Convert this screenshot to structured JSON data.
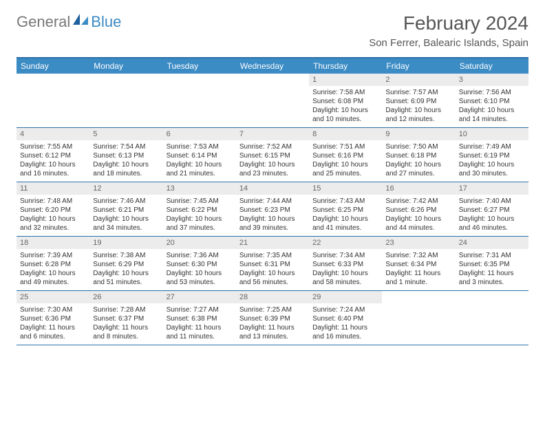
{
  "logo": {
    "text1": "General",
    "text2": "Blue"
  },
  "title": "February 2024",
  "location": "Son Ferrer, Balearic Islands, Spain",
  "weekdays": [
    "Sunday",
    "Monday",
    "Tuesday",
    "Wednesday",
    "Thursday",
    "Friday",
    "Saturday"
  ],
  "colors": {
    "header_bar": "#3b8bc4",
    "header_border": "#2a6fa8",
    "daynum_bg": "#ececec",
    "text": "#333333",
    "title_text": "#555555"
  },
  "fonts": {
    "title_size": 28,
    "location_size": 15,
    "weekday_size": 12,
    "body_size": 10
  },
  "layout": {
    "columns": 7,
    "first_weekday_index": 4,
    "days_in_month": 29
  },
  "days": [
    {
      "n": 1,
      "sunrise": "7:58 AM",
      "sunset": "6:08 PM",
      "daylight": "10 hours and 10 minutes."
    },
    {
      "n": 2,
      "sunrise": "7:57 AM",
      "sunset": "6:09 PM",
      "daylight": "10 hours and 12 minutes."
    },
    {
      "n": 3,
      "sunrise": "7:56 AM",
      "sunset": "6:10 PM",
      "daylight": "10 hours and 14 minutes."
    },
    {
      "n": 4,
      "sunrise": "7:55 AM",
      "sunset": "6:12 PM",
      "daylight": "10 hours and 16 minutes."
    },
    {
      "n": 5,
      "sunrise": "7:54 AM",
      "sunset": "6:13 PM",
      "daylight": "10 hours and 18 minutes."
    },
    {
      "n": 6,
      "sunrise": "7:53 AM",
      "sunset": "6:14 PM",
      "daylight": "10 hours and 21 minutes."
    },
    {
      "n": 7,
      "sunrise": "7:52 AM",
      "sunset": "6:15 PM",
      "daylight": "10 hours and 23 minutes."
    },
    {
      "n": 8,
      "sunrise": "7:51 AM",
      "sunset": "6:16 PM",
      "daylight": "10 hours and 25 minutes."
    },
    {
      "n": 9,
      "sunrise": "7:50 AM",
      "sunset": "6:18 PM",
      "daylight": "10 hours and 27 minutes."
    },
    {
      "n": 10,
      "sunrise": "7:49 AM",
      "sunset": "6:19 PM",
      "daylight": "10 hours and 30 minutes."
    },
    {
      "n": 11,
      "sunrise": "7:48 AM",
      "sunset": "6:20 PM",
      "daylight": "10 hours and 32 minutes."
    },
    {
      "n": 12,
      "sunrise": "7:46 AM",
      "sunset": "6:21 PM",
      "daylight": "10 hours and 34 minutes."
    },
    {
      "n": 13,
      "sunrise": "7:45 AM",
      "sunset": "6:22 PM",
      "daylight": "10 hours and 37 minutes."
    },
    {
      "n": 14,
      "sunrise": "7:44 AM",
      "sunset": "6:23 PM",
      "daylight": "10 hours and 39 minutes."
    },
    {
      "n": 15,
      "sunrise": "7:43 AM",
      "sunset": "6:25 PM",
      "daylight": "10 hours and 41 minutes."
    },
    {
      "n": 16,
      "sunrise": "7:42 AM",
      "sunset": "6:26 PM",
      "daylight": "10 hours and 44 minutes."
    },
    {
      "n": 17,
      "sunrise": "7:40 AM",
      "sunset": "6:27 PM",
      "daylight": "10 hours and 46 minutes."
    },
    {
      "n": 18,
      "sunrise": "7:39 AM",
      "sunset": "6:28 PM",
      "daylight": "10 hours and 49 minutes."
    },
    {
      "n": 19,
      "sunrise": "7:38 AM",
      "sunset": "6:29 PM",
      "daylight": "10 hours and 51 minutes."
    },
    {
      "n": 20,
      "sunrise": "7:36 AM",
      "sunset": "6:30 PM",
      "daylight": "10 hours and 53 minutes."
    },
    {
      "n": 21,
      "sunrise": "7:35 AM",
      "sunset": "6:31 PM",
      "daylight": "10 hours and 56 minutes."
    },
    {
      "n": 22,
      "sunrise": "7:34 AM",
      "sunset": "6:33 PM",
      "daylight": "10 hours and 58 minutes."
    },
    {
      "n": 23,
      "sunrise": "7:32 AM",
      "sunset": "6:34 PM",
      "daylight": "11 hours and 1 minute."
    },
    {
      "n": 24,
      "sunrise": "7:31 AM",
      "sunset": "6:35 PM",
      "daylight": "11 hours and 3 minutes."
    },
    {
      "n": 25,
      "sunrise": "7:30 AM",
      "sunset": "6:36 PM",
      "daylight": "11 hours and 6 minutes."
    },
    {
      "n": 26,
      "sunrise": "7:28 AM",
      "sunset": "6:37 PM",
      "daylight": "11 hours and 8 minutes."
    },
    {
      "n": 27,
      "sunrise": "7:27 AM",
      "sunset": "6:38 PM",
      "daylight": "11 hours and 11 minutes."
    },
    {
      "n": 28,
      "sunrise": "7:25 AM",
      "sunset": "6:39 PM",
      "daylight": "11 hours and 13 minutes."
    },
    {
      "n": 29,
      "sunrise": "7:24 AM",
      "sunset": "6:40 PM",
      "daylight": "11 hours and 16 minutes."
    }
  ],
  "labels": {
    "sunrise": "Sunrise:",
    "sunset": "Sunset:",
    "daylight": "Daylight:"
  }
}
